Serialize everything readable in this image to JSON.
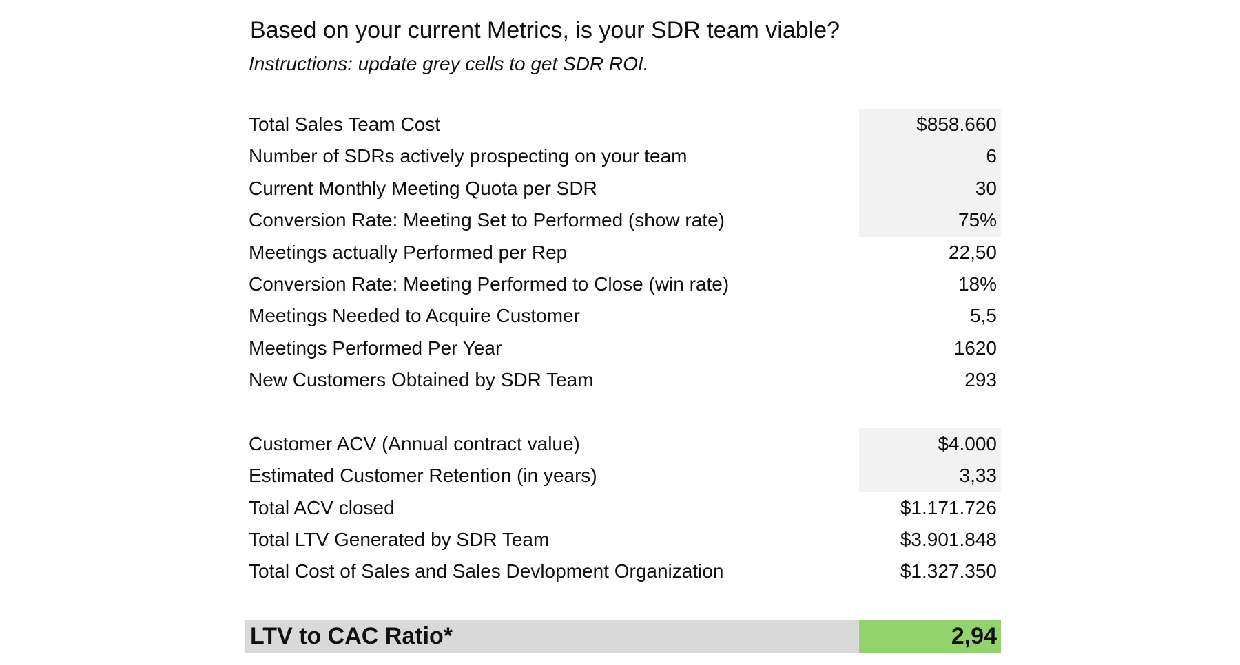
{
  "header": {
    "title": "Based on your current Metrics, is your SDR team viable?",
    "instructions": "Instructions: update grey cells to get SDR ROI."
  },
  "section1": [
    {
      "label": "Total Sales Team Cost",
      "value": "$858.660"
    },
    {
      "label": "Number of SDRs actively prospecting on your team",
      "value": "6"
    },
    {
      "label": "Current Monthly Meeting Quota per SDR",
      "value": "30"
    },
    {
      "label": "Conversion Rate: Meeting Set to Performed (show rate)",
      "value": "75%"
    },
    {
      "label": "Meetings actually Performed per Rep",
      "value": "22,50"
    },
    {
      "label": "Conversion Rate: Meeting Performed to Close (win rate)",
      "value": "18%"
    },
    {
      "label": "Meetings Needed to Acquire Customer",
      "value": "5,5"
    },
    {
      "label": "Meetings Performed Per Year",
      "value": "1620"
    },
    {
      "label": "New Customers Obtained by SDR Team",
      "value": "293"
    }
  ],
  "section2": [
    {
      "label": "Customer ACV (Annual contract value)",
      "value": "$4.000"
    },
    {
      "label": "Estimated Customer Retention (in years)",
      "value": "3,33"
    },
    {
      "label": "Total ACV closed",
      "value": "$1.171.726"
    },
    {
      "label": "Total LTV Generated by SDR Team",
      "value": "$3.901.848"
    },
    {
      "label": "Total Cost of Sales and Sales Devlopment Organization",
      "value": "$1.327.350"
    }
  ],
  "result": {
    "label": "LTV to CAC Ratio*",
    "value": "2,94"
  },
  "colors": {
    "input_cell": "#f2f2f2",
    "result_row": "#d9d9d9",
    "result_value": "#92d36e"
  }
}
